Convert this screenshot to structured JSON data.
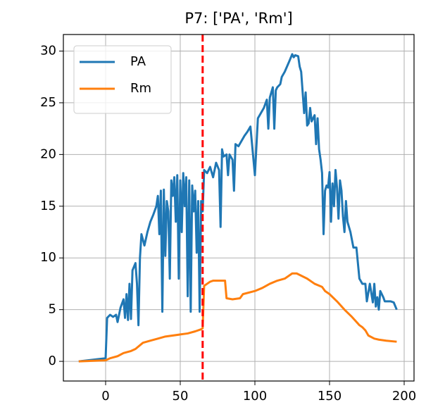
{
  "chart_data": {
    "type": "line",
    "title": "P7: ['PA', 'Rm']",
    "xlim": [
      -28.3,
      206.6
    ],
    "ylim": [
      -1.9,
      31.6
    ],
    "xticks": [
      0,
      50,
      100,
      150,
      200
    ],
    "yticks": [
      0,
      5,
      10,
      15,
      20,
      25,
      30
    ],
    "grid": true,
    "legend": "upper left",
    "vline": {
      "x": 65,
      "color": "#ff0000",
      "style": "dashed"
    },
    "series": [
      {
        "name": "PA",
        "color": "#1f77b4",
        "x": [
          -18,
          0,
          1,
          3,
          5,
          7,
          8,
          10,
          12,
          13,
          14,
          15,
          16,
          17,
          18,
          20,
          21,
          22,
          23,
          24,
          26,
          28,
          30,
          32,
          34,
          35,
          36,
          37,
          38,
          39,
          40,
          41,
          42,
          43,
          44,
          45,
          46,
          47,
          48,
          49,
          50,
          51,
          52,
          53,
          54,
          55,
          56,
          57,
          58,
          59,
          60,
          61,
          62,
          63,
          64,
          65,
          66,
          68,
          70,
          72,
          74,
          76,
          77,
          78,
          79,
          81,
          82,
          83,
          85,
          86,
          87,
          89,
          91,
          93,
          95,
          97,
          100,
          102,
          106,
          108,
          109,
          110,
          112,
          113,
          114,
          115,
          117,
          118,
          120,
          123,
          125,
          126,
          127,
          129,
          130,
          131,
          133,
          134,
          135,
          136,
          137,
          138,
          139,
          140,
          141,
          142,
          143,
          144,
          145,
          146,
          147,
          148,
          149,
          150,
          151,
          152,
          153,
          154,
          155,
          156,
          157,
          158,
          159,
          160,
          161,
          162,
          164,
          166,
          168,
          170,
          172,
          174,
          175,
          177,
          179,
          180,
          181,
          182,
          183,
          184,
          186,
          187,
          189,
          191,
          193,
          195
        ],
        "values": [
          0,
          0.3,
          4.2,
          4.5,
          4.3,
          4.5,
          3.8,
          5.2,
          6,
          4.2,
          6.5,
          4,
          7.5,
          4.1,
          8.8,
          9.5,
          7.5,
          3.5,
          10,
          12.3,
          11.2,
          12.5,
          13.5,
          14.2,
          15,
          16,
          12.3,
          16.5,
          4.8,
          16.6,
          10.2,
          15.5,
          14.5,
          8,
          17.5,
          16,
          17.8,
          13.5,
          18,
          8,
          17.5,
          12.5,
          18.2,
          15,
          17.8,
          6.3,
          17.5,
          4.8,
          17,
          14.5,
          16.5,
          10.5,
          15.5,
          4.8,
          15.5,
          14.5,
          18.5,
          18.2,
          18.8,
          17.8,
          19.2,
          18.5,
          13,
          20.5,
          19.8,
          20,
          18,
          20,
          19.5,
          16.5,
          21,
          20.8,
          21.3,
          21.8,
          22.2,
          22.7,
          18,
          23.5,
          24.5,
          25.3,
          22.5,
          25.5,
          26.5,
          22.5,
          26.2,
          26.5,
          26.8,
          27.5,
          28,
          29,
          29.7,
          29.4,
          29.6,
          29.5,
          28.5,
          28,
          24,
          26,
          22.8,
          23,
          24.5,
          23.2,
          23.5,
          23.8,
          21,
          23.5,
          20.5,
          19.5,
          18.2,
          12.3,
          16.5,
          17,
          16.8,
          18.3,
          13.5,
          17.2,
          15,
          18.5,
          16.8,
          13.8,
          17.5,
          16.5,
          14,
          12.5,
          15.5,
          13.5,
          12.5,
          11,
          11,
          8,
          7.5,
          7.5,
          5.8,
          7.5,
          5.7,
          7.5,
          5.3,
          6.2,
          5,
          6.8,
          6.2,
          5.8,
          5.8,
          5.8,
          5.7,
          5
        ]
      },
      {
        "name": "Rm",
        "color": "#ff7f0e",
        "x": [
          -18,
          0,
          3,
          8,
          12,
          17,
          20,
          25,
          30,
          35,
          40,
          50,
          55,
          60,
          64,
          65,
          66,
          68,
          70,
          72,
          80,
          81,
          85,
          90,
          92,
          100,
          105,
          110,
          115,
          120,
          125,
          128,
          135,
          140,
          145,
          147,
          150,
          155,
          160,
          165,
          170,
          172,
          174,
          176,
          180,
          183,
          188,
          195
        ],
        "values": [
          0,
          0.1,
          0.3,
          0.5,
          0.8,
          1.0,
          1.2,
          1.8,
          2.0,
          2.2,
          2.4,
          2.6,
          2.7,
          2.9,
          3.1,
          3.2,
          7.3,
          7.5,
          7.7,
          7.8,
          7.8,
          6.1,
          6.0,
          6.1,
          6.5,
          6.8,
          7.1,
          7.5,
          7.8,
          8.0,
          8.5,
          8.5,
          8.0,
          7.5,
          7.2,
          6.8,
          6.5,
          5.8,
          5.0,
          4.3,
          3.5,
          3.3,
          3.0,
          2.5,
          2.2,
          2.1,
          2.0,
          1.9
        ]
      }
    ]
  }
}
